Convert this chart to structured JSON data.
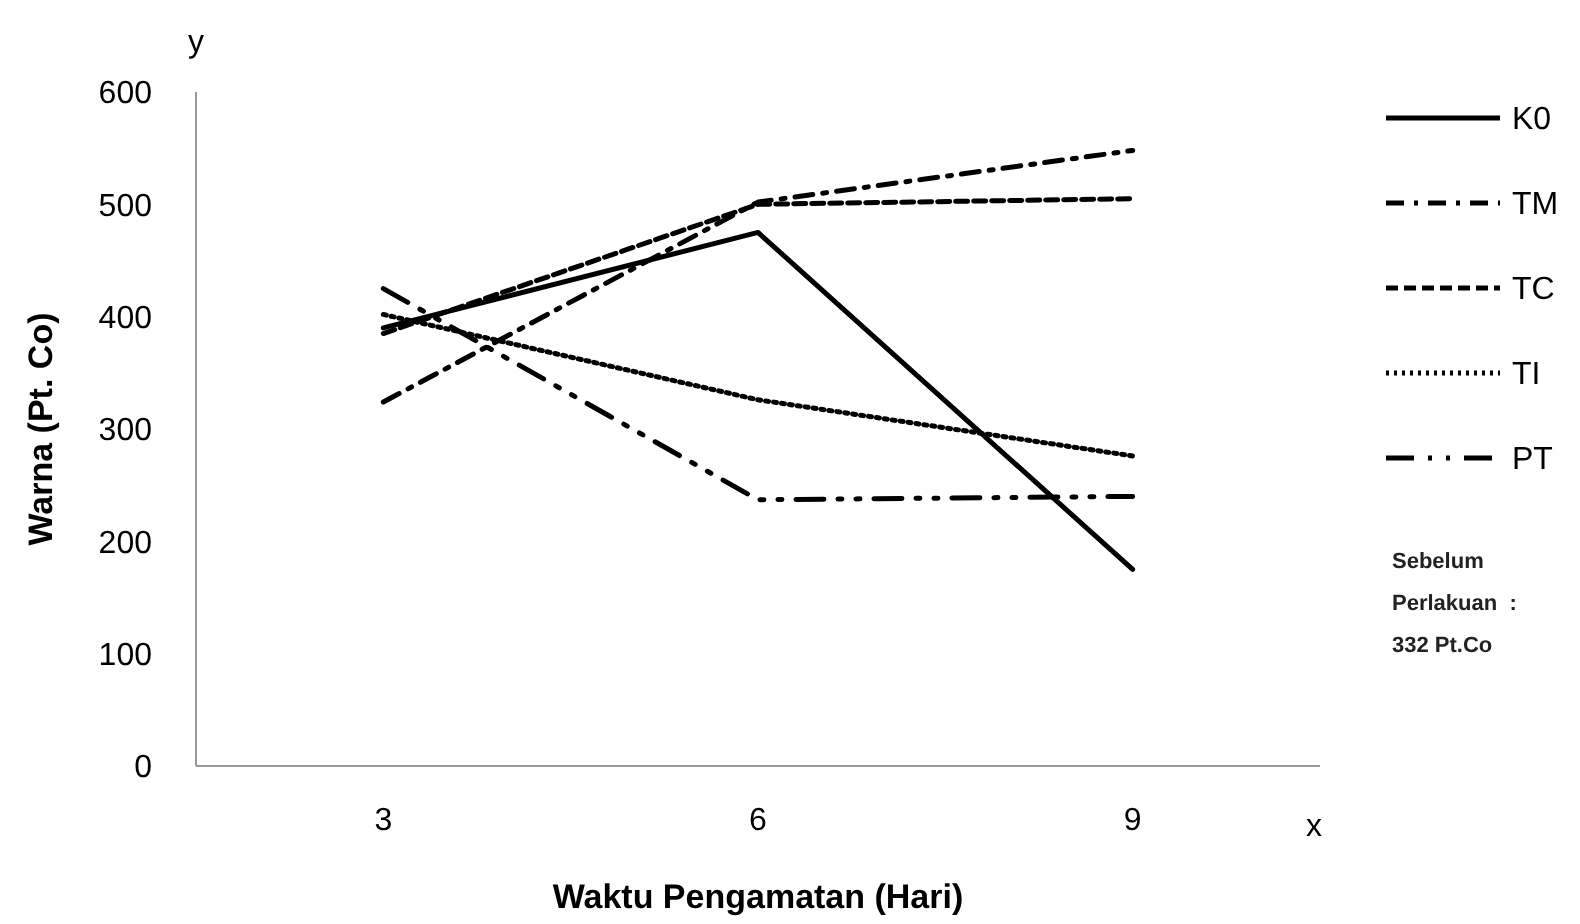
{
  "chart_data": {
    "type": "line",
    "xlabel": "Waktu Pengamatan (Hari)",
    "ylabel": "Warna (Pt. Co)",
    "x": [
      3,
      6,
      9
    ],
    "xlim": [
      1.5,
      10.5
    ],
    "xticks": [
      3,
      6,
      9
    ],
    "ylim": [
      0,
      600
    ],
    "yticks": [
      0,
      100,
      200,
      300,
      400,
      500,
      600
    ],
    "grid": false,
    "legend": "right",
    "marker": "none",
    "series": [
      {
        "name": "K0",
        "color": "#000000",
        "line_style": "solid",
        "values": [
          390,
          475,
          175
        ]
      },
      {
        "name": "TM",
        "color": "#000000",
        "line_style": "dashdot",
        "values": [
          324,
          502,
          548
        ]
      },
      {
        "name": "TC",
        "color": "#000000",
        "line_style": "dashed",
        "values": [
          385,
          500,
          505
        ]
      },
      {
        "name": "TI",
        "color": "#000000",
        "line_style": "dotted",
        "values": [
          402,
          326,
          276
        ]
      },
      {
        "name": "PT",
        "color": "#000000",
        "line_style": "dashdotdot",
        "values": [
          425,
          237,
          240
        ]
      }
    ],
    "annotations": [
      "y",
      "x",
      "Sebelum\nPerlakuan  :\n332 Pt.Co"
    ]
  }
}
